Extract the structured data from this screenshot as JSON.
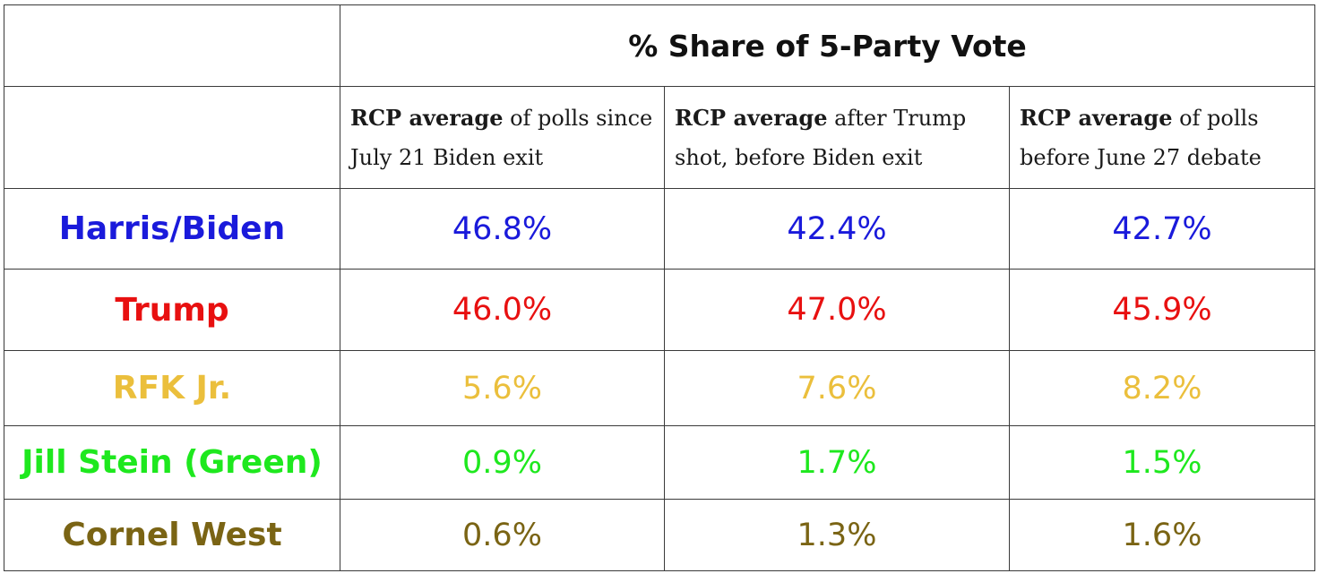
{
  "chart_data": {
    "type": "table",
    "title": "% Share of 5-Party Vote",
    "columns": [
      {
        "bold": "RCP average",
        "rest": " of polls since July 21 Biden exit"
      },
      {
        "bold": "RCP average",
        "rest": " after Trump shot, before Biden exit"
      },
      {
        "bold": "RCP average",
        "rest": " of polls before June 27 debate"
      }
    ],
    "rows": [
      {
        "name": "Harris/Biden",
        "color": "#1a1adb",
        "values": [
          "46.8%",
          "42.4%",
          "42.7%"
        ]
      },
      {
        "name": "Trump",
        "color": "#e81010",
        "values": [
          "46.0%",
          "47.0%",
          "45.9%"
        ]
      },
      {
        "name": "RFK Jr.",
        "color": "#ebbf3c",
        "values": [
          "5.6%",
          "7.6%",
          "8.2%"
        ]
      },
      {
        "name": "Jill Stein (Green)",
        "color": "#1ee81e",
        "values": [
          "0.9%",
          "1.7%",
          "1.5%"
        ]
      },
      {
        "name": "Cornel West",
        "color": "#7a6414",
        "values": [
          "0.6%",
          "1.3%",
          "1.6%"
        ]
      }
    ]
  }
}
